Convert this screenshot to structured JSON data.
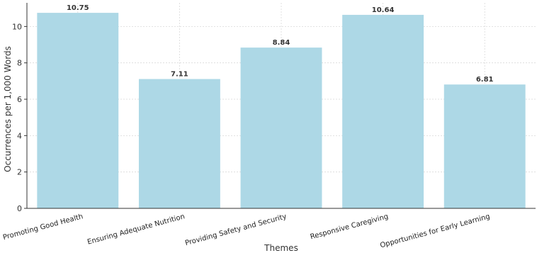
{
  "chart_data": {
    "type": "bar",
    "categories": [
      "Promoting Good Health",
      "Ensuring Adequate Nutrition",
      "Providing Safety and Security",
      "Responsive Caregiving",
      "Opportunities for Early Learning"
    ],
    "values": [
      10.75,
      7.11,
      8.84,
      10.64,
      6.81
    ],
    "data_labels": [
      "10.75",
      "7.11",
      "8.84",
      "10.64",
      "6.81"
    ],
    "xlabel": "Themes",
    "ylabel": "Occurrences per 1,000 Words",
    "ylim": [
      0,
      11.3
    ],
    "yticks": [
      0,
      2,
      4,
      6,
      8,
      10
    ],
    "grid": true,
    "bar_color": "#add8e6",
    "grid_color": "#d9d9d9"
  }
}
